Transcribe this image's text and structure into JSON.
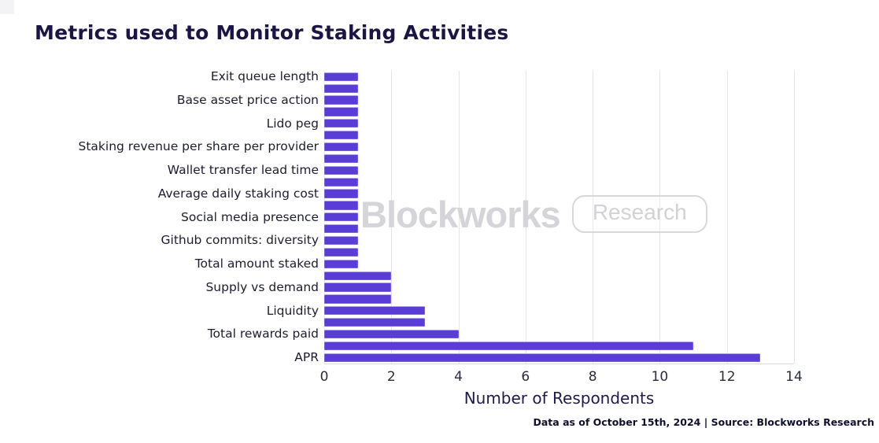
{
  "page": {
    "background": "#ffffff"
  },
  "title": {
    "text": "Metrics used to Monitor Staking Activities",
    "color": "#1b1545"
  },
  "watermark": {
    "brand": "Blockworks",
    "badge": "Research",
    "color": "#d5d5d9"
  },
  "footer": {
    "text": "Data as of October 15th, 2024 | Source: Blockworks Research",
    "color": "#10102e"
  },
  "chart_data": {
    "type": "bar",
    "orientation": "horizontal",
    "title": "Metrics used to Monitor Staking Activities",
    "xlabel": "Number of Respondents",
    "ylabel": "",
    "xlim": [
      0,
      14
    ],
    "xticks": [
      0,
      2,
      4,
      6,
      8,
      10,
      12,
      14
    ],
    "grid": true,
    "bar_color": "#5a3dd6",
    "grid_color": "#e5e5ea",
    "label_thinning_note": "25 bars are drawn; category tick labels are thinned so only every other bar (13 of them) shows a label",
    "rows": [
      {
        "label": "Exit queue length",
        "value": 1
      },
      {
        "label": "",
        "value": 1
      },
      {
        "label": "Base asset price action",
        "value": 1
      },
      {
        "label": "",
        "value": 1
      },
      {
        "label": "Lido peg",
        "value": 1
      },
      {
        "label": "",
        "value": 1
      },
      {
        "label": "Staking revenue per share per provider",
        "value": 1
      },
      {
        "label": "",
        "value": 1
      },
      {
        "label": "Wallet transfer lead time",
        "value": 1
      },
      {
        "label": "",
        "value": 1
      },
      {
        "label": "Average daily staking cost",
        "value": 1
      },
      {
        "label": "",
        "value": 1
      },
      {
        "label": "Social media presence",
        "value": 1
      },
      {
        "label": "",
        "value": 1
      },
      {
        "label": "Github commits: diversity",
        "value": 1
      },
      {
        "label": "",
        "value": 1
      },
      {
        "label": "Total amount staked",
        "value": 1
      },
      {
        "label": "",
        "value": 2
      },
      {
        "label": "Supply vs demand",
        "value": 2
      },
      {
        "label": "",
        "value": 2
      },
      {
        "label": "Liquidity",
        "value": 3
      },
      {
        "label": "",
        "value": 3
      },
      {
        "label": "Total rewards paid",
        "value": 4
      },
      {
        "label": "",
        "value": 11
      },
      {
        "label": "APR",
        "value": 13
      }
    ]
  }
}
